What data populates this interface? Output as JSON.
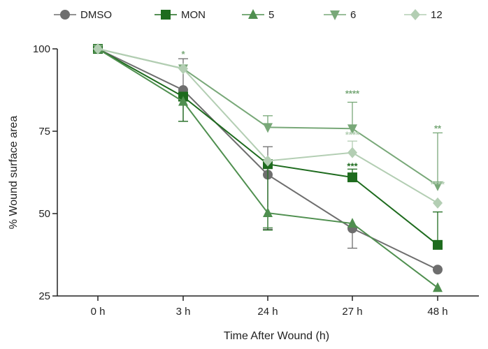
{
  "chart_data": {
    "type": "line",
    "title": "",
    "xlabel": "Time After Wound (h)",
    "ylabel": "% Wound surface area",
    "categories": [
      "0 h",
      "3 h",
      "24 h",
      "27 h",
      "48 h"
    ],
    "ylim": [
      25,
      100
    ],
    "yticks": [
      25,
      50,
      75,
      100
    ],
    "grid": false,
    "legend_position": "top",
    "series": [
      {
        "name": "DMSO",
        "marker": "circle",
        "color": "#6e6e6e",
        "values": [
          100,
          87.5,
          61.8,
          45.5,
          33
        ],
        "err_lo": [
          0,
          9.5,
          16.5,
          6,
          0
        ],
        "err_hi": [
          0,
          9.5,
          8.5,
          0,
          0
        ]
      },
      {
        "name": "MON",
        "marker": "square",
        "color": "#1e6b1e",
        "values": [
          100,
          85.5,
          65,
          61,
          40.5
        ],
        "err_lo": [
          0,
          7.5,
          20,
          0,
          0
        ],
        "err_hi": [
          0,
          0,
          0,
          2.5,
          10
        ]
      },
      {
        "name": "5",
        "marker": "triangle-up",
        "color": "#4f8f4f",
        "values": [
          100,
          84,
          50.2,
          47,
          27.5
        ],
        "err_lo": [
          0,
          0,
          4.5,
          0,
          0
        ],
        "err_hi": [
          0,
          0,
          0,
          0,
          0
        ]
      },
      {
        "name": "6",
        "marker": "triangle-down",
        "color": "#78a878",
        "values": [
          100,
          94,
          76.2,
          75.8,
          58.5
        ],
        "err_lo": [
          0,
          0,
          0,
          0,
          0
        ],
        "err_hi": [
          0,
          0,
          3.5,
          8,
          16
        ]
      },
      {
        "name": "12",
        "marker": "diamond",
        "color": "#b3ceb3",
        "values": [
          100,
          94,
          66,
          68.5,
          53.2
        ],
        "err_lo": [
          0,
          0,
          0,
          0,
          0
        ],
        "err_hi": [
          0,
          0,
          0,
          3.5,
          0
        ]
      }
    ],
    "annotations": [
      {
        "category": "3 h",
        "y": 98.5,
        "text": "*",
        "series": "6"
      },
      {
        "category": "27 h",
        "y": 86.5,
        "text": "****",
        "series": "6"
      },
      {
        "category": "27 h",
        "y": 74,
        "text": "****",
        "series": "12"
      },
      {
        "category": "27 h",
        "y": 64.5,
        "text": "***",
        "series": "MON"
      },
      {
        "category": "48 h",
        "y": 76,
        "text": "**",
        "series": "6"
      },
      {
        "category": "48 h",
        "y": 59,
        "text": "****",
        "series": "12"
      }
    ]
  }
}
